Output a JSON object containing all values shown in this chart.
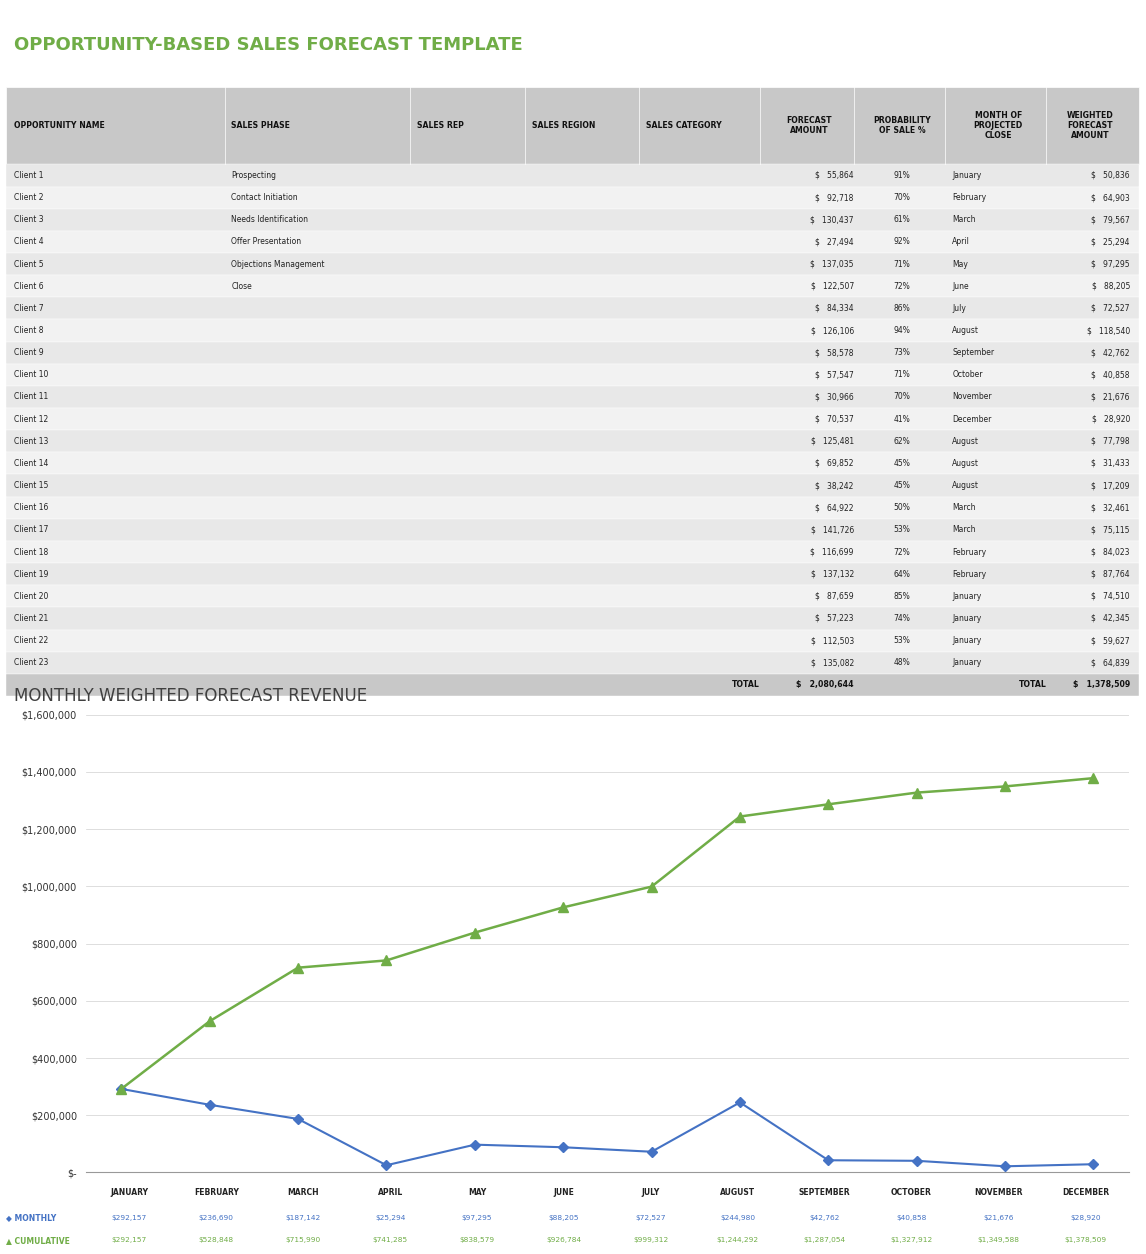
{
  "title": "OPPORTUNITY-BASED SALES FORECAST TEMPLATE",
  "chart_title": "MONTHLY WEIGHTED FORECAST REVENUE",
  "header_bg": "#c8c8c8",
  "row_bg_odd": "#e8e8e8",
  "row_bg_even": "#f2f2f2",
  "total_bg": "#c8c8c8",
  "col_headers": [
    "OPPORTUNITY NAME",
    "SALES PHASE",
    "SALES REP",
    "SALES REGION",
    "SALES CATEGORY",
    "FORECAST\nAMOUNT",
    "PROBABILITY\nOF SALE %",
    "MONTH OF\nPROJECTED\nCLOSE",
    "WEIGHTED\nFORECAST\nAMOUNT"
  ],
  "rows": [
    [
      "Client 1",
      "Prospecting",
      "",
      "",
      "",
      "55,864",
      "91%",
      "January",
      "50,836"
    ],
    [
      "Client 2",
      "Contact Initiation",
      "",
      "",
      "",
      "92,718",
      "70%",
      "February",
      "64,903"
    ],
    [
      "Client 3",
      "Needs Identification",
      "",
      "",
      "",
      "130,437",
      "61%",
      "March",
      "79,567"
    ],
    [
      "Client 4",
      "Offer Presentation",
      "",
      "",
      "",
      "27,494",
      "92%",
      "April",
      "25,294"
    ],
    [
      "Client 5",
      "Objections Management",
      "",
      "",
      "",
      "137,035",
      "71%",
      "May",
      "97,295"
    ],
    [
      "Client 6",
      "Close",
      "",
      "",
      "",
      "122,507",
      "72%",
      "June",
      "88,205"
    ],
    [
      "Client 7",
      "",
      "",
      "",
      "",
      "84,334",
      "86%",
      "July",
      "72,527"
    ],
    [
      "Client 8",
      "",
      "",
      "",
      "",
      "126,106",
      "94%",
      "August",
      "118,540"
    ],
    [
      "Client 9",
      "",
      "",
      "",
      "",
      "58,578",
      "73%",
      "September",
      "42,762"
    ],
    [
      "Client 10",
      "",
      "",
      "",
      "",
      "57,547",
      "71%",
      "October",
      "40,858"
    ],
    [
      "Client 11",
      "",
      "",
      "",
      "",
      "30,966",
      "70%",
      "November",
      "21,676"
    ],
    [
      "Client 12",
      "",
      "",
      "",
      "",
      "70,537",
      "41%",
      "December",
      "28,920"
    ],
    [
      "Client 13",
      "",
      "",
      "",
      "",
      "125,481",
      "62%",
      "August",
      "77,798"
    ],
    [
      "Client 14",
      "",
      "",
      "",
      "",
      "69,852",
      "45%",
      "August",
      "31,433"
    ],
    [
      "Client 15",
      "",
      "",
      "",
      "",
      "38,242",
      "45%",
      "August",
      "17,209"
    ],
    [
      "Client 16",
      "",
      "",
      "",
      "",
      "64,922",
      "50%",
      "March",
      "32,461"
    ],
    [
      "Client 17",
      "",
      "",
      "",
      "",
      "141,726",
      "53%",
      "March",
      "75,115"
    ],
    [
      "Client 18",
      "",
      "",
      "",
      "",
      "116,699",
      "72%",
      "February",
      "84,023"
    ],
    [
      "Client 19",
      "",
      "",
      "",
      "",
      "137,132",
      "64%",
      "February",
      "87,764"
    ],
    [
      "Client 20",
      "",
      "",
      "",
      "",
      "87,659",
      "85%",
      "January",
      "74,510"
    ],
    [
      "Client 21",
      "",
      "",
      "",
      "",
      "57,223",
      "74%",
      "January",
      "42,345"
    ],
    [
      "Client 22",
      "",
      "",
      "",
      "",
      "112,503",
      "53%",
      "January",
      "59,627"
    ],
    [
      "Client 23",
      "",
      "",
      "",
      "",
      "135,082",
      "48%",
      "January",
      "64,839"
    ]
  ],
  "total_row": [
    "",
    "",
    "",
    "",
    "TOTAL",
    "2,080,644",
    "",
    "TOTAL",
    "1,378,509"
  ],
  "months": [
    "JANUARY",
    "FEBRUARY",
    "MARCH",
    "APRIL",
    "MAY",
    "JUNE",
    "JULY",
    "AUGUST",
    "SEPTEMBER",
    "OCTOBER",
    "NOVEMBER",
    "DECEMBER"
  ],
  "monthly_values": [
    292157,
    236690,
    187142,
    25294,
    97295,
    88205,
    72527,
    244980,
    42762,
    40858,
    21676,
    28920
  ],
  "cumulative_values": [
    292157,
    528848,
    715990,
    741285,
    838579,
    926784,
    999312,
    1244292,
    1287054,
    1327912,
    1349588,
    1378509
  ],
  "monthly_labels": [
    "$292,157",
    "$236,690",
    "$187,142",
    "$25,294",
    "$97,295",
    "$88,205",
    "$72,527",
    "$244,980",
    "$42,762",
    "$40,858",
    "$21,676",
    "$28,920"
  ],
  "cumulative_labels": [
    "$292,157",
    "$528,848",
    "$715,990",
    "$741,285",
    "$838,579",
    "$926,784",
    "$999,312",
    "$1,244,292",
    "$1,287,054",
    "$1,327,912",
    "$1,349,588",
    "$1,378,509"
  ],
  "monthly_color": "#4472c4",
  "cumulative_color": "#70ad47",
  "bg_color": "#ffffff",
  "title_color": "#70ad47",
  "chart_title_color": "#404040",
  "grid_color": "#d0d0d0",
  "border_color": "#ffffff"
}
